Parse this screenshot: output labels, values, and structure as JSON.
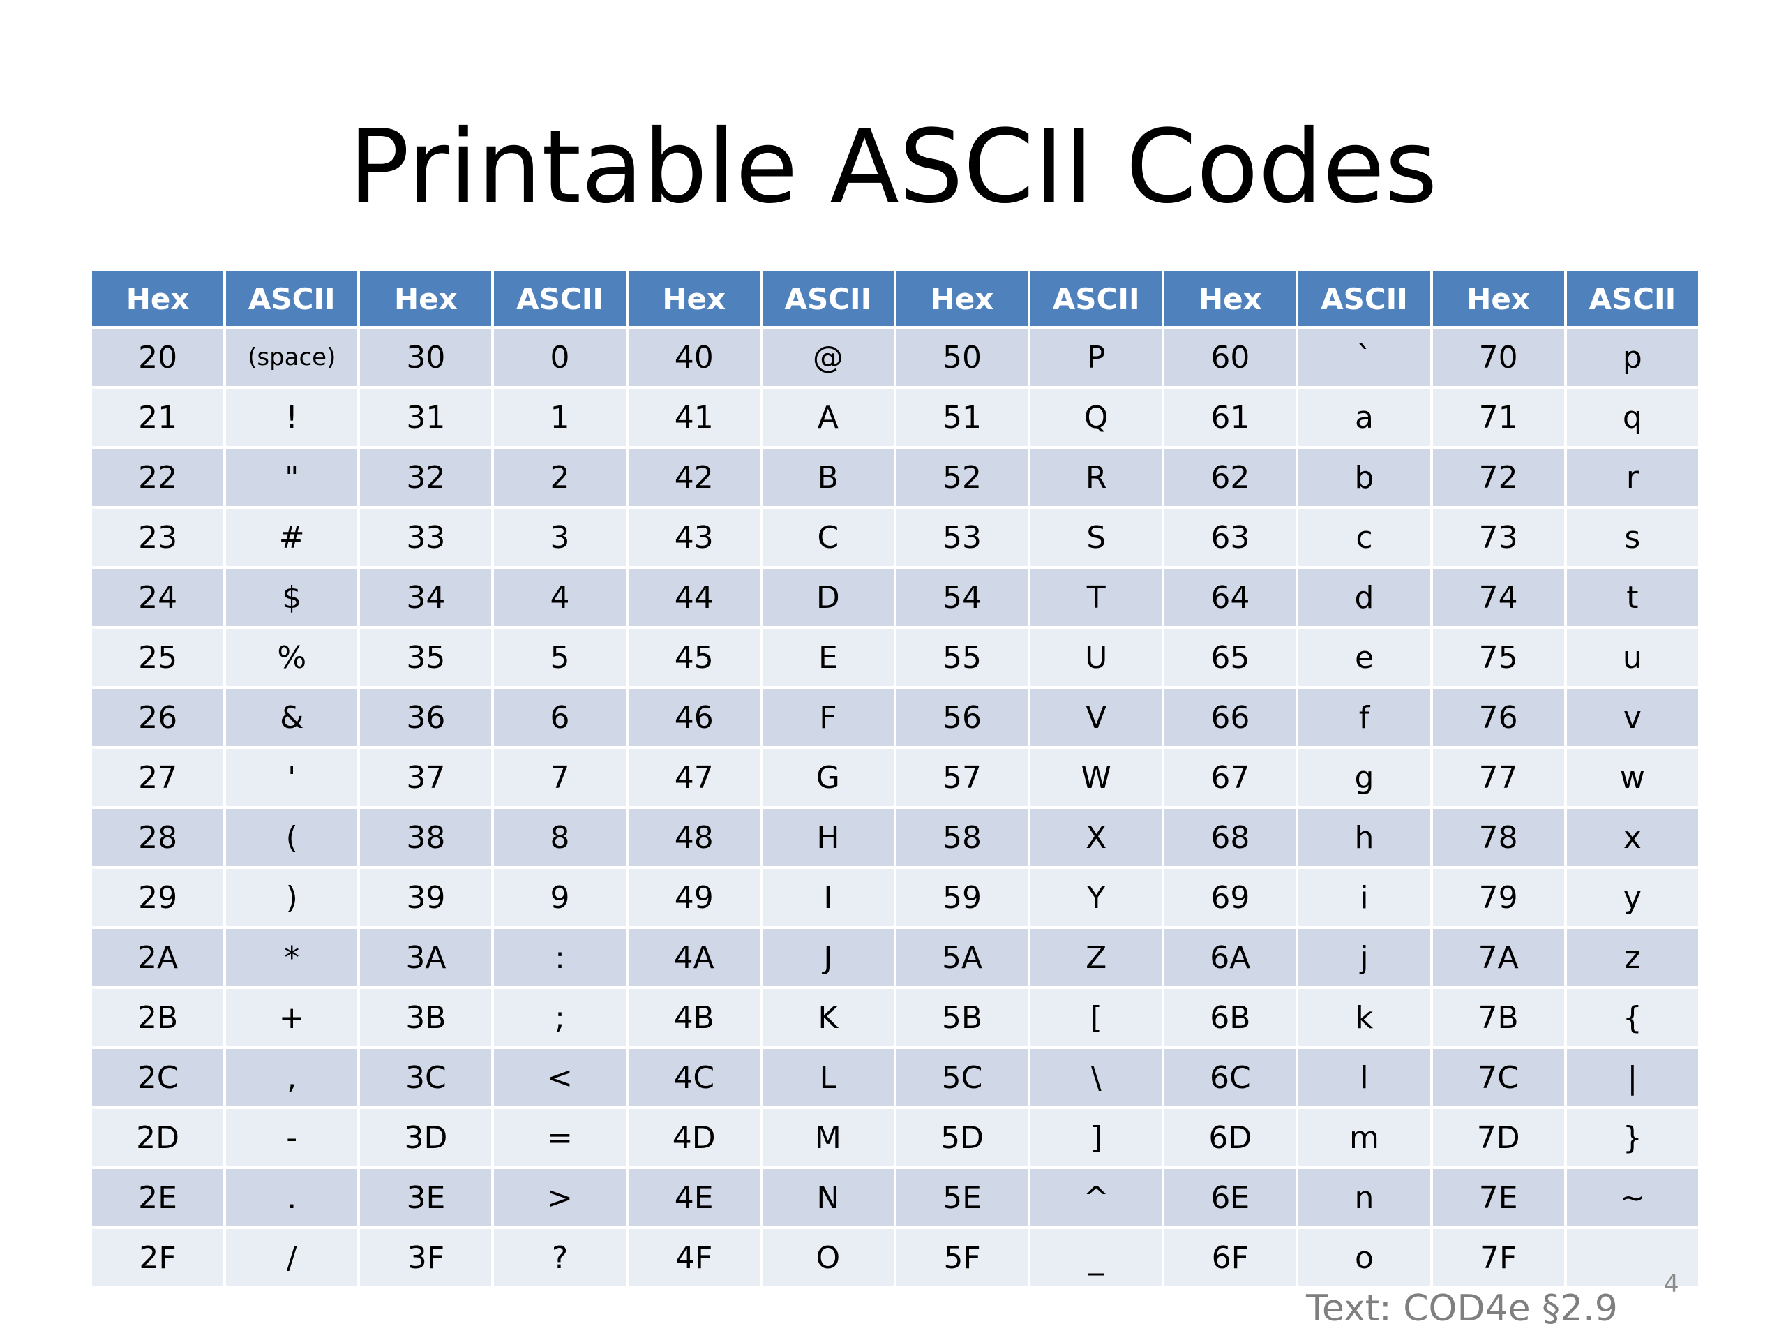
{
  "title": "Printable ASCII Codes",
  "header": [
    "Hex",
    "ASCII",
    "Hex",
    "ASCII",
    "Hex",
    "ASCII",
    "Hex",
    "ASCII",
    "Hex",
    "ASCII",
    "Hex",
    "ASCII"
  ],
  "rows": [
    [
      "20",
      "(space)",
      "30",
      "0",
      "40",
      "@",
      "50",
      "P",
      "60",
      "`",
      "70",
      "p"
    ],
    [
      "21",
      "!",
      "31",
      "1",
      "41",
      "A",
      "51",
      "Q",
      "61",
      "a",
      "71",
      "q"
    ],
    [
      "22",
      "\"",
      "32",
      "2",
      "42",
      "B",
      "52",
      "R",
      "62",
      "b",
      "72",
      "r"
    ],
    [
      "23",
      "#",
      "33",
      "3",
      "43",
      "C",
      "53",
      "S",
      "63",
      "c",
      "73",
      "s"
    ],
    [
      "24",
      "$",
      "34",
      "4",
      "44",
      "D",
      "54",
      "T",
      "64",
      "d",
      "74",
      "t"
    ],
    [
      "25",
      "%",
      "35",
      "5",
      "45",
      "E",
      "55",
      "U",
      "65",
      "e",
      "75",
      "u"
    ],
    [
      "26",
      "&",
      "36",
      "6",
      "46",
      "F",
      "56",
      "V",
      "66",
      "f",
      "76",
      "v"
    ],
    [
      "27",
      "'",
      "37",
      "7",
      "47",
      "G",
      "57",
      "W",
      "67",
      "g",
      "77",
      "w"
    ],
    [
      "28",
      "(",
      "38",
      "8",
      "48",
      "H",
      "58",
      "X",
      "68",
      "h",
      "78",
      "x"
    ],
    [
      "29",
      ")",
      "39",
      "9",
      "49",
      "I",
      "59",
      "Y",
      "69",
      "i",
      "79",
      "y"
    ],
    [
      "2A",
      "*",
      "3A",
      ":",
      "4A",
      "J",
      "5A",
      "Z",
      "6A",
      "j",
      "7A",
      "z"
    ],
    [
      "2B",
      "+",
      "3B",
      ";",
      "4B",
      "K",
      "5B",
      "[",
      "6B",
      "k",
      "7B",
      "{"
    ],
    [
      "2C",
      ",",
      "3C",
      "<",
      "4C",
      "L",
      "5C",
      "\\",
      "6C",
      "l",
      "7C",
      "|"
    ],
    [
      "2D",
      "-",
      "3D",
      "=",
      "4D",
      "M",
      "5D",
      "]",
      "6D",
      "m",
      "7D",
      "}"
    ],
    [
      "2E",
      ".",
      "3E",
      ">",
      "4E",
      "N",
      "5E",
      "^",
      "6E",
      "n",
      "7E",
      "~"
    ],
    [
      "2F",
      "/",
      "3F",
      "?",
      "4F",
      "O",
      "5F",
      "_",
      "6F",
      "o",
      "7F",
      ""
    ]
  ],
  "slide_number": "4",
  "citation": "Text: COD4e §2.9"
}
